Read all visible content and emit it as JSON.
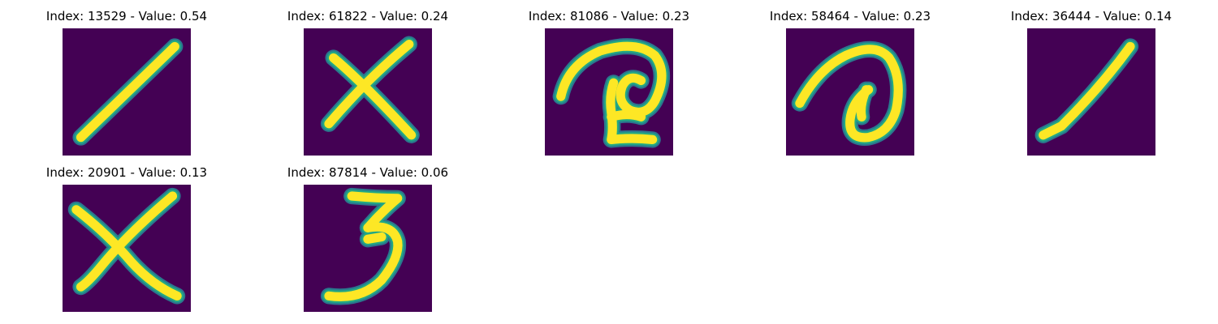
{
  "colors": {
    "background": "#440154",
    "stroke_core": "#fde725",
    "stroke_edge": "#22a884",
    "stroke_halo": "#2a788e"
  },
  "panels": [
    {
      "title": "Index: 13529 - Value: 0.54",
      "index": 13529,
      "value": 0.54,
      "glyph": "diagonal-stroke"
    },
    {
      "title": "Index: 61822 - Value: 0.24",
      "index": 61822,
      "value": 0.24,
      "glyph": "x-mark"
    },
    {
      "title": "Index: 81086 - Value: 0.23",
      "index": 81086,
      "value": 0.23,
      "glyph": "curly-scribble"
    },
    {
      "title": "Index: 58464 - Value: 0.23",
      "index": 58464,
      "value": 0.23,
      "glyph": "spiral"
    },
    {
      "title": "Index: 36444 - Value: 0.14",
      "index": 36444,
      "value": 0.14,
      "glyph": "diagonal-stroke"
    },
    {
      "title": "Index: 20901 - Value: 0.13",
      "index": 20901,
      "value": 0.13,
      "glyph": "x-mark"
    },
    {
      "title": "Index: 87814 - Value: 0.06",
      "index": 87814,
      "value": 0.06,
      "glyph": "digit-three"
    }
  ]
}
